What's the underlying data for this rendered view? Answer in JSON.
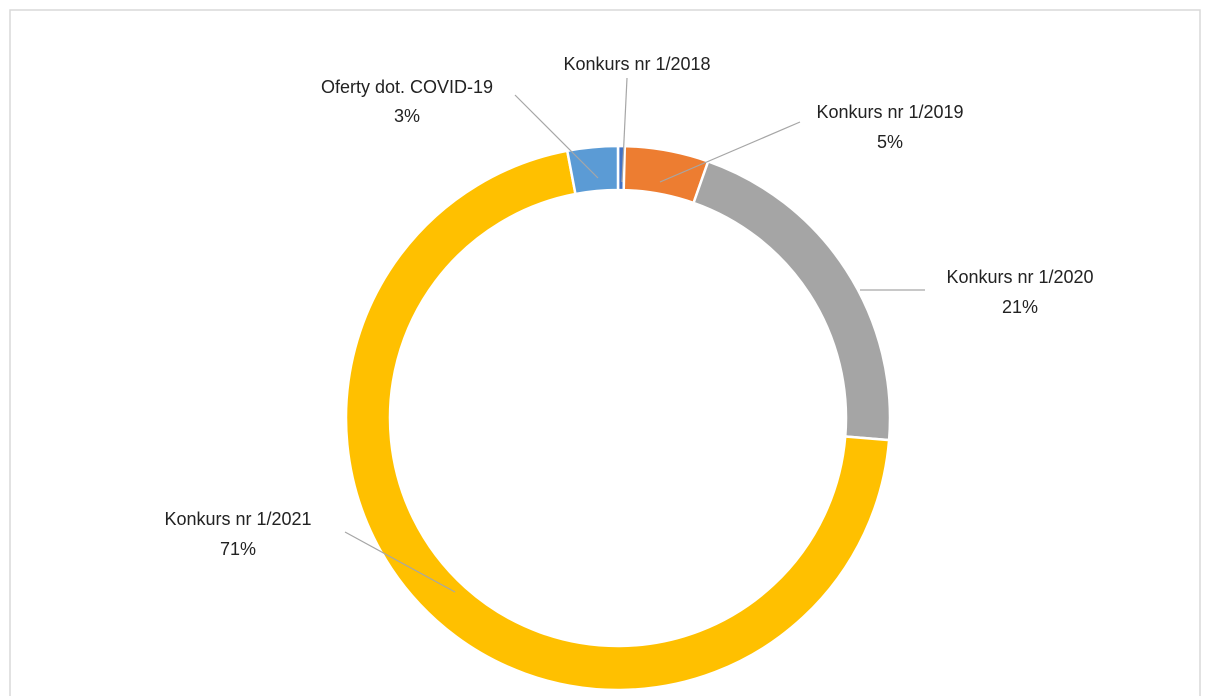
{
  "chart_data": {
    "type": "donut",
    "categories": [
      "Konkurs nr 1/2018",
      "Konkurs nr 1/2019",
      "Konkurs nr 1/2020",
      "Konkurs nr 1/2021",
      "Oferty dot. COVID-19"
    ],
    "values": [
      0.4,
      5,
      21,
      71,
      3
    ],
    "value_labels": [
      null,
      "5%",
      "21%",
      "71%",
      "3%"
    ],
    "colors": [
      "#4472c4",
      "#ed7d31",
      "#a5a5a5",
      "#ffc000",
      "#5b9bd5"
    ]
  }
}
